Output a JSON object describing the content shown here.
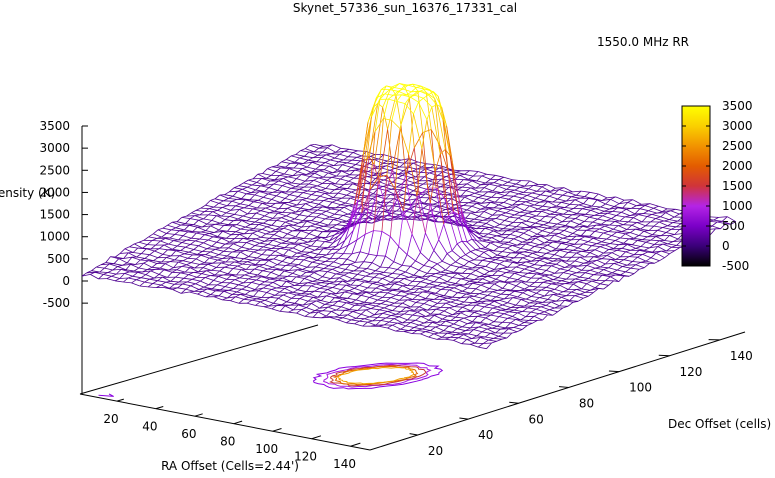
{
  "chart_data": {
    "type": "surface3d",
    "title": "Skynet_57336_sun_16376_17331_cal",
    "xlabel": "RA Offset (Cells=2.44')",
    "ylabel": "Dec Offset (cells)",
    "zlabel": "Intensity (K)",
    "legend": {
      "label": "1550.0 MHz RR",
      "placement": "top-right"
    },
    "x_ticks": [
      "20",
      "40",
      "60",
      "80",
      "100",
      "120",
      "140"
    ],
    "y_ticks": [
      "20",
      "40",
      "60",
      "80",
      "100",
      "120",
      "140"
    ],
    "z_ticks": [
      "3500",
      "3000",
      "2500",
      "2000",
      "1500",
      "1000",
      "500",
      "0",
      "-500"
    ],
    "xlim": [
      1,
      150
    ],
    "ylim": [
      1,
      150
    ],
    "zlim": [
      -500,
      3500
    ],
    "colorbar": {
      "ticks": [
        "3500",
        "3000",
        "2500",
        "2000",
        "1500",
        "1000",
        "500",
        "0",
        "-500"
      ],
      "range": [
        -500,
        3500
      ],
      "palette": [
        "#000000",
        "#3a0079",
        "#7b00c8",
        "#b424e6",
        "#d0343a",
        "#e35c00",
        "#f29300",
        "#fad000",
        "#ffff00"
      ]
    },
    "surface": {
      "baseline_k": 150,
      "peak_k": 3500,
      "peak_center_cells": [
        75,
        75
      ],
      "source_radius_cells": 15
    },
    "contours": {
      "levels_k": [
        400,
        1000,
        1700,
        2400,
        3000
      ],
      "colors": [
        "#8a00e0",
        "#a81ae0",
        "#c63c30",
        "#e16400",
        "#f0a000"
      ]
    }
  }
}
